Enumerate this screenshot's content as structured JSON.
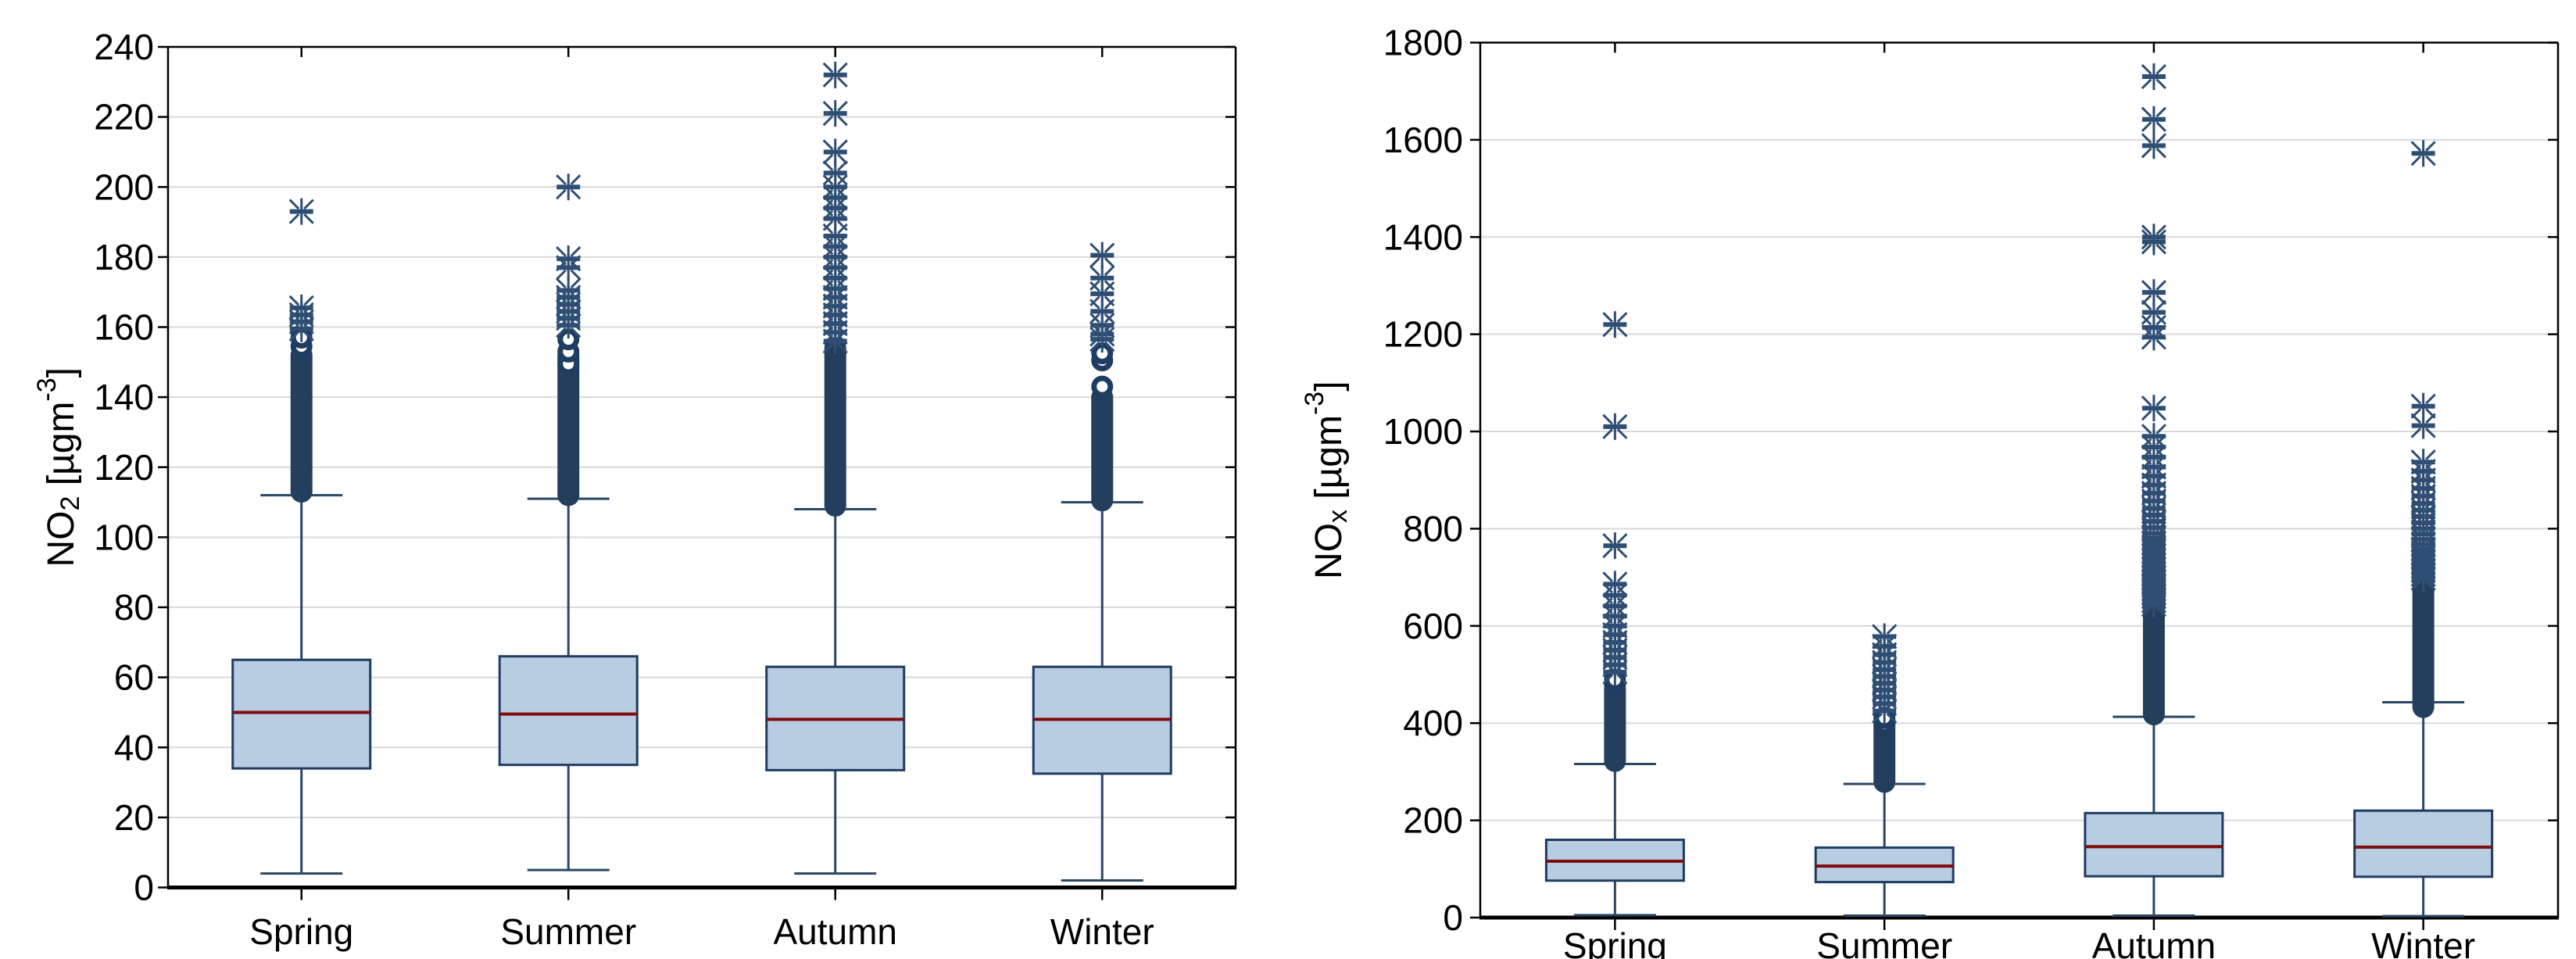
{
  "figure": {
    "description": "Two seasonal box-and-whisker plots of air pollutant concentrations",
    "background": "#ffffff"
  },
  "colors": {
    "box_fill": "#b8cce2",
    "box_border": "#1f3c61",
    "median_line": "#7f0d0d",
    "whisker": "#2a4764",
    "dense_outlier": "#243f5e",
    "marker_stroke": "#2f4e73",
    "gridline": "#d9d9d9",
    "axis": "#000000",
    "text": "#000000"
  },
  "chart_data": [
    {
      "type": "box",
      "position": "left",
      "ylabel": {
        "base": "NO",
        "subscript": "2",
        "unit_prefix": " [µgm",
        "exponent": "-3",
        "unit_suffix": "]"
      },
      "ylabel_plain": "NO2 [µgm-3]",
      "ylim": [
        0,
        240
      ],
      "ytick_step": 20,
      "yticks": [
        0,
        20,
        40,
        60,
        80,
        100,
        120,
        140,
        160,
        180,
        200,
        220,
        240
      ],
      "grid": "horizontal",
      "categories": [
        "Spring",
        "Summer",
        "Autumn",
        "Winter"
      ],
      "series": [
        {
          "label": "Spring",
          "whisker_low": 4,
          "q1": 34,
          "median": 50,
          "q3": 65,
          "whisker_high": 112,
          "dense_outlier_range": [
            113,
            152
          ],
          "circle_outliers": [
            154.5,
            157
          ],
          "asterisk_outliers": [
            159.5,
            161.5,
            163.5,
            165.5,
            193
          ]
        },
        {
          "label": "Summer",
          "whisker_low": 5,
          "q1": 35,
          "median": 49.5,
          "q3": 66,
          "whisker_high": 111,
          "dense_outlier_range": [
            112,
            152
          ],
          "circle_outliers": [
            149.5,
            153,
            156.5
          ],
          "asterisk_outliers": [
            160.5,
            162.5,
            164.5,
            166.5,
            168.5,
            170.5,
            177,
            179.5,
            200
          ]
        },
        {
          "label": "Autumn",
          "whisker_low": 4,
          "q1": 33.5,
          "median": 48,
          "q3": 63,
          "whisker_high": 108,
          "dense_outlier_range": [
            109,
            154
          ],
          "circle_outliers": [],
          "asterisk_outliers": [
            156,
            158.5,
            161,
            163.5,
            166,
            168.5,
            171,
            174,
            177,
            180,
            183,
            186,
            191,
            194,
            197,
            200,
            204,
            210,
            221,
            232
          ]
        },
        {
          "label": "Winter",
          "whisker_low": 2,
          "q1": 32.5,
          "median": 48,
          "q3": 63,
          "whisker_high": 110,
          "dense_outlier_range": [
            110.5,
            140
          ],
          "circle_outliers": [
            143,
            150.5,
            152.5
          ],
          "asterisk_outliers": [
            156.5,
            158,
            160.5,
            164.5,
            169.5,
            174,
            180.5
          ]
        }
      ]
    },
    {
      "type": "box",
      "position": "right",
      "ylabel": {
        "base": "NO",
        "subscript": "x",
        "unit_prefix": " [µgm",
        "exponent": "-3",
        "unit_suffix": "]"
      },
      "ylabel_plain": "NOx [µgm-3]",
      "ylim": [
        0,
        1800
      ],
      "ytick_step": 200,
      "yticks": [
        0,
        200,
        400,
        600,
        800,
        1000,
        1200,
        1400,
        1600,
        1800
      ],
      "grid": "horizontal",
      "categories": [
        "Spring",
        "Summer",
        "Autumn",
        "Winter"
      ],
      "series": [
        {
          "label": "Spring",
          "whisker_low": 5,
          "q1": 76,
          "median": 116,
          "q3": 160,
          "whisker_high": 316,
          "dense_outlier_range": [
            322,
            470
          ],
          "circle_outliers": [
            479,
            489
          ],
          "asterisk_outliers": [
            505,
            520,
            535,
            550,
            566,
            582,
            600,
            620,
            641,
            663,
            686,
            765,
            1010,
            1220
          ]
        },
        {
          "label": "Summer",
          "whisker_low": 4,
          "q1": 73,
          "median": 106,
          "q3": 144,
          "whisker_high": 275,
          "dense_outlier_range": [
            279,
            408
          ],
          "circle_outliers": [
            399,
            411
          ],
          "asterisk_outliers": [
            425,
            440,
            454,
            468,
            482,
            496,
            510,
            525,
            541,
            558,
            578
          ]
        },
        {
          "label": "Autumn",
          "whisker_low": 4,
          "q1": 85,
          "median": 146,
          "q3": 215,
          "whisker_high": 413,
          "dense_outlier_range": [
            418,
            636
          ],
          "circle_outliers": [],
          "asterisk_outliers": [
            644,
            652,
            660,
            668,
            676,
            684,
            692,
            700,
            708,
            717,
            726,
            735,
            744,
            753,
            762,
            771,
            780,
            790,
            802,
            815,
            828,
            842,
            857,
            873,
            890,
            908,
            927,
            947,
            968,
            990,
            1048,
            1194,
            1214,
            1245,
            1286,
            1390,
            1400,
            1588,
            1642,
            1730
          ]
        },
        {
          "label": "Winter",
          "whisker_low": 3,
          "q1": 84,
          "median": 145,
          "q3": 220,
          "whisker_high": 443,
          "dense_outlier_range": [
            433,
            688
          ],
          "circle_outliers": [],
          "asterisk_outliers": [
            698,
            706,
            714,
            722,
            731,
            740,
            749,
            758,
            768,
            778,
            789,
            800,
            812,
            825,
            838,
            852,
            867,
            883,
            900,
            918,
            937,
            1012,
            1052,
            1572
          ]
        }
      ]
    }
  ],
  "legend": {
    "visible": false
  }
}
